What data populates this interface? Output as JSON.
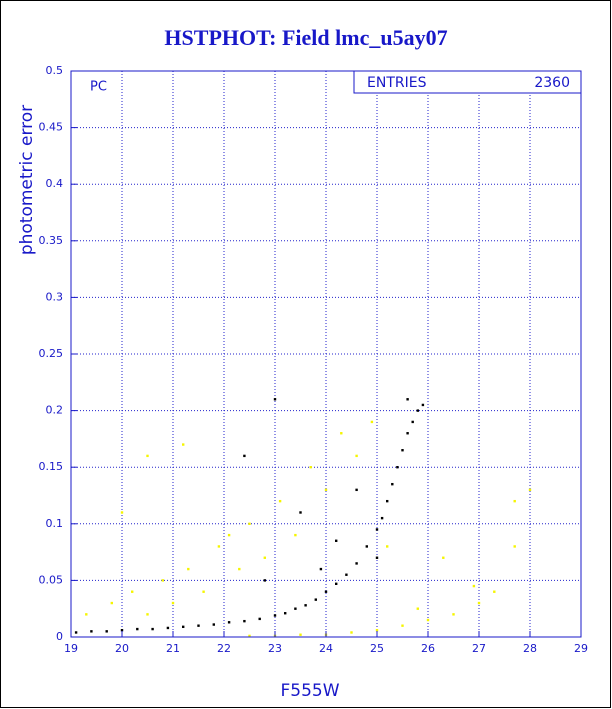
{
  "chart_data": {
    "type": "scatter",
    "title": "HSTPHOT: Field lmc_u5ay07",
    "x_label": "F555W",
    "y_label": "photometric error",
    "annotation": "PC",
    "stats_label": "ENTRIES",
    "stats_value": "2360",
    "xlim": [
      19,
      29
    ],
    "ylim": [
      0,
      0.5
    ],
    "xticks": [
      19,
      20,
      21,
      22,
      23,
      24,
      25,
      26,
      27,
      28,
      29
    ],
    "yticks": [
      0,
      0.05,
      0.1,
      0.15,
      0.2,
      0.25,
      0.3,
      0.35,
      0.4,
      0.45,
      0.5
    ],
    "grid": true,
    "series": [
      {
        "color": "#f5f500",
        "x": [
          19.3,
          19.8,
          20.2,
          20.5,
          20.8,
          21.0,
          21.3,
          21.6,
          21.9,
          22.1,
          22.3,
          22.5,
          22.8,
          23.1,
          23.4,
          23.7,
          24.0,
          24.3,
          24.6,
          24.9,
          25.2,
          21.2,
          20.5,
          20.0,
          22.5,
          23.0,
          23.5,
          24.0,
          24.5,
          25.0,
          25.5,
          26.0,
          26.5,
          27.0,
          27.3,
          26.3,
          27.7,
          27.7,
          28.0,
          26.9,
          25.8
        ],
        "values": [
          0.02,
          0.03,
          0.04,
          0.02,
          0.05,
          0.03,
          0.06,
          0.04,
          0.08,
          0.09,
          0.06,
          0.1,
          0.07,
          0.12,
          0.09,
          0.15,
          0.13,
          0.18,
          0.16,
          0.19,
          0.08,
          0.17,
          0.16,
          0.11,
          0.001,
          0.001,
          0.002,
          0.002,
          0.004,
          0.006,
          0.01,
          0.015,
          0.02,
          0.03,
          0.04,
          0.07,
          0.08,
          0.12,
          0.13,
          0.045,
          0.025
        ]
      },
      {
        "color": "#000000",
        "x": [
          19.1,
          19.4,
          19.7,
          20.0,
          20.3,
          20.6,
          20.9,
          21.2,
          21.5,
          21.8,
          22.1,
          22.4,
          22.7,
          23.0,
          23.2,
          23.4,
          23.6,
          23.8,
          24.0,
          24.2,
          24.4,
          24.6,
          24.8,
          25.0,
          25.1,
          25.2,
          25.3,
          25.4,
          25.5,
          25.6,
          25.7,
          25.8,
          25.9,
          25.6,
          23.0,
          22.4,
          23.5,
          22.8,
          23.9,
          24.6,
          25.0,
          24.2
        ],
        "values": [
          0.004,
          0.005,
          0.005,
          0.006,
          0.007,
          0.007,
          0.008,
          0.009,
          0.01,
          0.011,
          0.013,
          0.014,
          0.016,
          0.019,
          0.021,
          0.025,
          0.028,
          0.033,
          0.04,
          0.047,
          0.055,
          0.065,
          0.08,
          0.095,
          0.105,
          0.12,
          0.135,
          0.15,
          0.165,
          0.18,
          0.19,
          0.2,
          0.205,
          0.21,
          0.21,
          0.16,
          0.11,
          0.05,
          0.06,
          0.13,
          0.07,
          0.085
        ]
      }
    ]
  }
}
